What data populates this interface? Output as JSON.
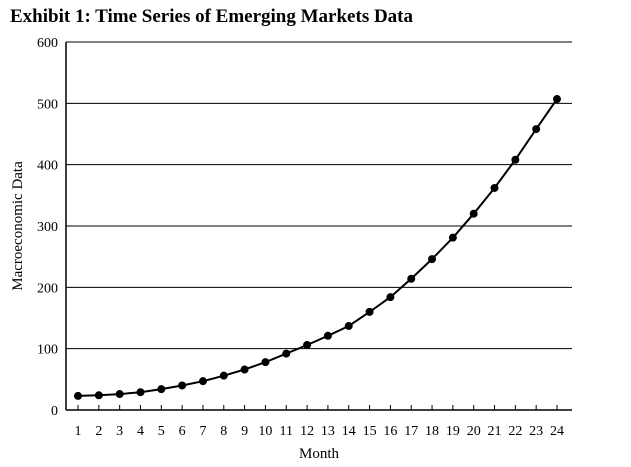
{
  "chart_data": {
    "type": "line",
    "title": "Exhibit 1: Time Series of Emerging Markets Data",
    "xlabel": "Month",
    "ylabel": "Macroeconomic Data",
    "ylim": [
      0,
      600
    ],
    "yticks": [
      0,
      100,
      200,
      300,
      400,
      500,
      600
    ],
    "x": [
      1,
      2,
      3,
      4,
      5,
      6,
      7,
      8,
      9,
      10,
      11,
      12,
      13,
      14,
      15,
      16,
      17,
      18,
      19,
      20,
      21,
      22,
      23,
      24
    ],
    "series": [
      {
        "values": [
          23,
          24,
          26,
          29,
          34,
          40,
          47,
          56,
          66,
          78,
          92,
          106,
          121,
          137,
          160,
          184,
          214,
          246,
          281,
          320,
          362,
          408,
          458,
          507
        ]
      }
    ],
    "grid": "horizontal",
    "legend": "none",
    "line_color": "#000000"
  }
}
